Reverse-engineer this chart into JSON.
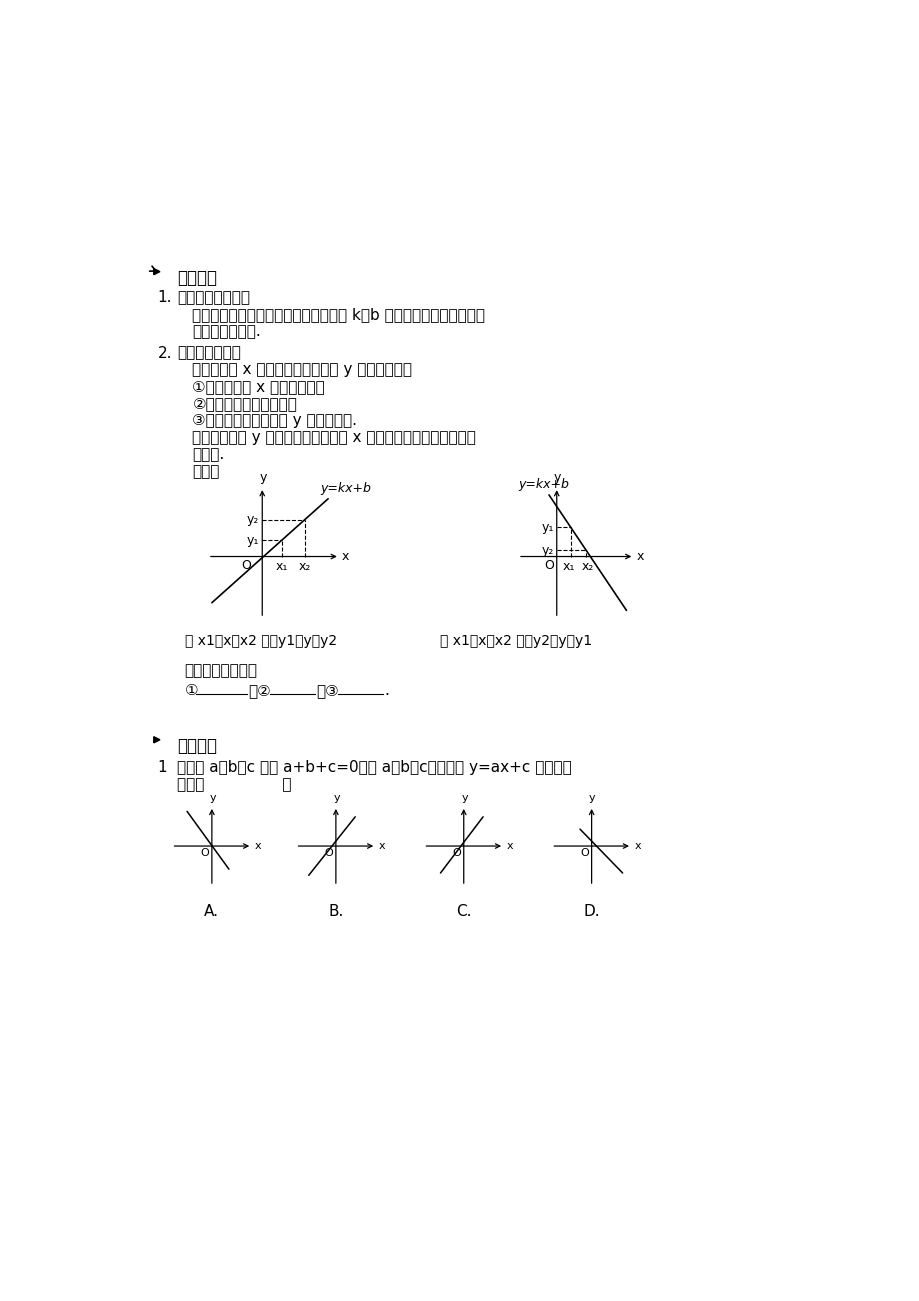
{
  "bg_color": "#ffffff",
  "text_color": "#000000",
  "section1_title": "知识点睛",
  "section2_title": "精讲精练",
  "item1_title": "函数图象共存问题",
  "item1_text1": "选定一个函数图象，根据图象性质判断 k，b 符号，验识另一个函数图",
  "item1_text2": "象存在的合理性.",
  "item2_title": "数形结合求范围",
  "item2_sub1": "已知自变量 x 的取値范围求因变量 y 的取値范围：",
  "item2_sub2": "①在图上标出 x 的取値范围；",
  "item2_sub3": "②对应到函数的图象上；",
  "item2_sub4": "③根据对应的图象确定 y 的取値范围.",
  "item2_sub5": "若已知因变量 y 的取値范围求自变量 x 的取値范围，操作方式和上",
  "item2_sub6": "述类似.",
  "item2_sub7": "举例：",
  "caption1": "当 x1＜x＜x2 时，y1＜y＜y2",
  "caption2": "当 x1＜x＜x2 时，y2＜y＜y1",
  "multicomp_title": "多个函数比大小：",
  "q1_text1": "若实数 a，b，c 满足 a+b+c=0，且 a＜b＜c，则函数 y=ax+c 的图象可",
  "q1_text2": "能是（                ）"
}
